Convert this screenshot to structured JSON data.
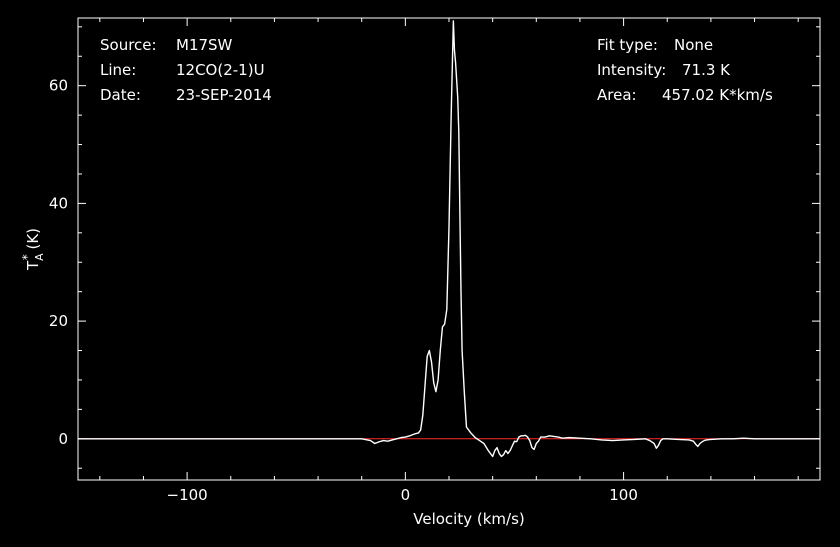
{
  "chart_data": {
    "type": "line",
    "xlabel": "Velocity (km/s)",
    "ylabel": {
      "base": "T",
      "sub": "A",
      "sup": "*",
      "unit": " (K)"
    },
    "xlim": [
      -150,
      190
    ],
    "ylim": [
      -7,
      71.5
    ],
    "xticks": [
      -100,
      0,
      100
    ],
    "yticks": [
      0,
      20,
      40,
      60
    ],
    "baseline": {
      "y": 0,
      "color": "#ff2a2a"
    },
    "colors": {
      "background": "#000000",
      "axes": "#ffffff",
      "series": "#ffffff"
    },
    "info_left": [
      {
        "label": "Source:",
        "value": "M17SW"
      },
      {
        "label": "Line:",
        "value": "12CO(2-1)U"
      },
      {
        "label": "Date:",
        "value": "23-SEP-2014"
      }
    ],
    "info_right": [
      {
        "label": "Fit type:",
        "value": "None"
      },
      {
        "label": "Intensity:",
        "value": "71.3 K"
      },
      {
        "label": "Area:",
        "value": "457.02 K*km/s"
      }
    ],
    "series": [
      {
        "x": [
          -150,
          -120,
          -90,
          -60,
          -30,
          -20,
          -16,
          -14,
          -12,
          -10,
          -8,
          -6,
          -4,
          -2,
          0,
          2,
          4,
          6,
          7,
          8,
          9,
          10,
          11,
          12,
          13,
          14,
          15,
          16,
          17,
          18,
          19,
          20,
          21,
          22,
          22.5,
          23,
          23.5,
          24,
          24.5,
          25,
          25.5,
          26,
          27,
          28,
          30,
          32,
          34,
          36,
          38,
          39,
          40,
          41,
          42,
          43,
          44,
          45,
          46,
          47,
          48,
          49,
          50,
          51,
          52,
          53,
          54,
          55,
          56,
          57,
          58,
          59,
          60,
          61,
          62,
          64,
          66,
          68,
          70,
          72,
          75,
          80,
          85,
          90,
          95,
          100,
          105,
          110,
          112,
          114,
          115,
          116,
          117,
          118,
          120,
          125,
          130,
          132,
          133,
          134,
          135,
          136,
          137,
          138,
          140,
          145,
          150,
          155,
          160,
          165,
          170,
          175,
          180,
          185,
          190
        ],
        "y": [
          0,
          0,
          0,
          0,
          0,
          0,
          -0.3,
          -0.8,
          -0.5,
          -0.3,
          -0.4,
          -0.2,
          0,
          0.2,
          0.3,
          0.5,
          0.8,
          1,
          1.5,
          4,
          9,
          14,
          15,
          13,
          9.5,
          8,
          10,
          15,
          19,
          19.5,
          22,
          36,
          55,
          71,
          66,
          64,
          61,
          58,
          52,
          38,
          25,
          15,
          8,
          2,
          1,
          0.2,
          -0.3,
          -0.8,
          -2,
          -2.5,
          -3,
          -2,
          -1.5,
          -2.5,
          -3,
          -2.7,
          -2,
          -2.5,
          -2,
          -1.2,
          -0.4,
          -0.5,
          0.3,
          0.5,
          0.5,
          0.6,
          0.3,
          -0.3,
          -1.5,
          -1.8,
          -0.8,
          -0.4,
          0.3,
          0.3,
          0.5,
          0.4,
          0.3,
          0.1,
          0.2,
          0.1,
          0,
          -0.2,
          -0.3,
          -0.2,
          -0.1,
          0,
          -0.3,
          -0.8,
          -1.6,
          -1.1,
          -0.3,
          0,
          0,
          -0.1,
          -0.2,
          -0.4,
          -0.9,
          -1.3,
          -0.8,
          -0.5,
          -0.3,
          -0.2,
          -0.1,
          0,
          0,
          0.1,
          0,
          0,
          0,
          0,
          0,
          0,
          0
        ]
      }
    ]
  }
}
